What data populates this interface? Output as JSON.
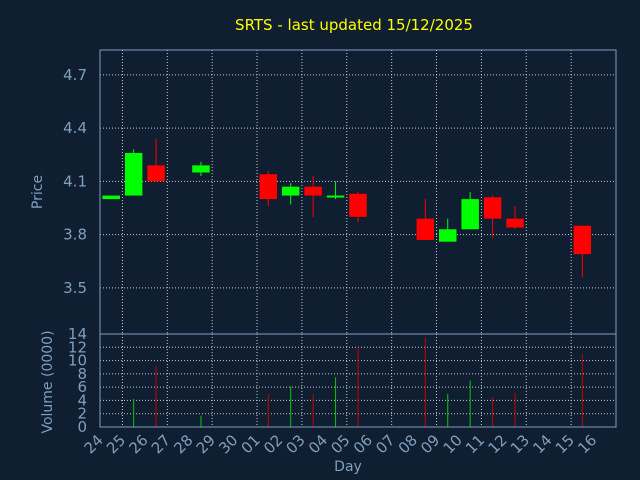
{
  "chart_data": {
    "type": "candlestick",
    "title": "SRTS - last updated 15/12/2025",
    "xlabel": "Day",
    "price_panel": {
      "ylabel": "Price",
      "ylim": [
        3.24,
        4.84
      ],
      "yticks": [
        "3.5",
        "3.8",
        "4.1",
        "4.4",
        "4.7"
      ]
    },
    "volume_panel": {
      "ylabel": "Volume (0000)",
      "ylim": [
        0,
        14
      ],
      "yticks": [
        "0",
        "2",
        "4",
        "6",
        "8",
        "10",
        "12",
        "14"
      ]
    },
    "categories": [
      "24",
      "25",
      "26",
      "27",
      "28",
      "29",
      "30",
      "01",
      "02",
      "03",
      "04",
      "05",
      "06",
      "07",
      "08",
      "09",
      "10",
      "11",
      "12",
      "13",
      "14",
      "15",
      "16"
    ],
    "candles": [
      {
        "day": "24",
        "open": 4.0,
        "high": 4.02,
        "low": 4.0,
        "close": 4.02,
        "volume": 0
      },
      {
        "day": "25",
        "open": 4.02,
        "high": 4.28,
        "low": 4.02,
        "close": 4.26,
        "volume": 4.2
      },
      {
        "day": "26",
        "open": 4.19,
        "high": 4.34,
        "low": 4.1,
        "close": 4.1,
        "volume": 9.2
      },
      {
        "day": "28",
        "open": 4.15,
        "high": 4.21,
        "low": 4.13,
        "close": 4.19,
        "volume": 1.7
      },
      {
        "day": "01",
        "open": 4.14,
        "high": 4.16,
        "low": 3.96,
        "close": 4.0,
        "volume": 5.0
      },
      {
        "day": "02",
        "open": 4.02,
        "high": 4.09,
        "low": 3.97,
        "close": 4.07,
        "volume": 6.1
      },
      {
        "day": "03",
        "open": 4.07,
        "high": 4.13,
        "low": 3.9,
        "close": 4.02,
        "volume": 5.0
      },
      {
        "day": "04",
        "open": 4.01,
        "high": 4.1,
        "low": 4.0,
        "close": 4.02,
        "volume": 7.5
      },
      {
        "day": "05",
        "open": 4.03,
        "high": 4.04,
        "low": 3.87,
        "close": 3.9,
        "volume": 12.0
      },
      {
        "day": "08",
        "open": 3.89,
        "high": 4.0,
        "low": 3.77,
        "close": 3.77,
        "volume": 13.5
      },
      {
        "day": "09",
        "open": 3.76,
        "high": 3.89,
        "low": 3.76,
        "close": 3.83,
        "volume": 5.0
      },
      {
        "day": "10",
        "open": 3.83,
        "high": 4.04,
        "low": 3.83,
        "close": 4.0,
        "volume": 7.0
      },
      {
        "day": "11",
        "open": 4.01,
        "high": 4.02,
        "low": 3.78,
        "close": 3.89,
        "volume": 4.5
      },
      {
        "day": "12",
        "open": 3.89,
        "high": 3.96,
        "low": 3.83,
        "close": 3.84,
        "volume": 5.2
      },
      {
        "day": "15",
        "open": 3.85,
        "high": 3.85,
        "low": 3.56,
        "close": 3.69,
        "volume": 11.0
      }
    ],
    "colors": {
      "up": "#00ff00",
      "down": "#ff0000",
      "up_volume": "#00cc00",
      "down_volume": "#cc0000",
      "grid": "#cccccc",
      "frame": "#7f9fbf",
      "background": "#0f1e30",
      "title": "#ffff00",
      "text": "#7f9fbf"
    },
    "grid": true
  }
}
